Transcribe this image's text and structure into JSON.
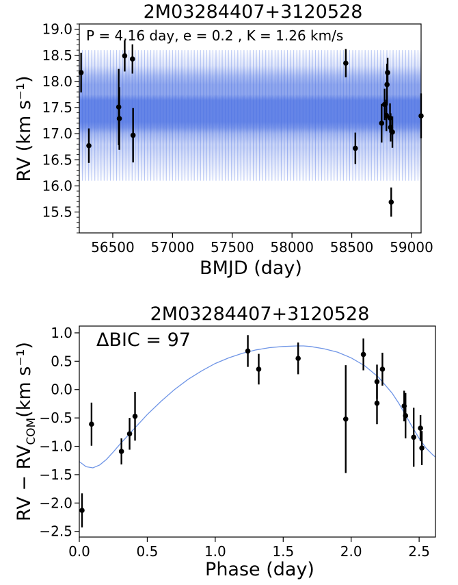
{
  "chart_data": [
    {
      "type": "scatter",
      "title": "2M03284407+3120528",
      "annotation": "P = 4.16 day, e = 0.2 , K = 1.26 km/s",
      "xlabel": "BMJD (day)",
      "ylabel": "RV (km s⁻¹)",
      "xlim": [
        56220,
        59080
      ],
      "ylim": [
        15.1,
        19.1
      ],
      "xticks": [
        56500,
        57000,
        57500,
        58000,
        58500,
        59000
      ],
      "yticks": [
        15.5,
        16.0,
        16.5,
        17.0,
        17.5,
        18.0,
        18.5,
        19.0
      ],
      "model_band": {
        "color": "#4169e1",
        "period_days": 4.16,
        "center": 17.5,
        "outer_range": [
          16.1,
          18.6
        ],
        "inner_range": [
          16.8,
          18.3
        ],
        "core_range": [
          17.0,
          17.75
        ]
      },
      "series": [
        {
          "points": [
            {
              "x": 56235,
              "y": 18.17,
              "err": 0.38
            },
            {
              "x": 56300,
              "y": 16.77,
              "err": 0.33
            },
            {
              "x": 56550,
              "y": 17.51,
              "err": 0.73
            },
            {
              "x": 56555,
              "y": 17.29,
              "err": 0.6
            },
            {
              "x": 56600,
              "y": 18.49,
              "err": 0.3
            },
            {
              "x": 56665,
              "y": 18.43,
              "err": 0.28
            },
            {
              "x": 56670,
              "y": 16.97,
              "err": 0.52
            },
            {
              "x": 58450,
              "y": 18.35,
              "err": 0.27
            },
            {
              "x": 58530,
              "y": 16.72,
              "err": 0.3
            },
            {
              "x": 58750,
              "y": 17.2,
              "err": 0.37
            },
            {
              "x": 58775,
              "y": 17.56,
              "err": 0.3
            },
            {
              "x": 58790,
              "y": 17.35,
              "err": 0.3
            },
            {
              "x": 58795,
              "y": 17.94,
              "err": 0.4
            },
            {
              "x": 58800,
              "y": 18.17,
              "err": 0.28
            },
            {
              "x": 58820,
              "y": 17.3,
              "err": 0.28
            },
            {
              "x": 58825,
              "y": 17.12,
              "err": 0.27
            },
            {
              "x": 58830,
              "y": 15.69,
              "err": 0.28
            },
            {
              "x": 58840,
              "y": 17.03,
              "err": 0.3
            },
            {
              "x": 59080,
              "y": 17.34,
              "err": 0.43
            }
          ]
        }
      ]
    },
    {
      "type": "scatter",
      "title": "2M03284407+3120528",
      "annotation": "ΔBIC = 97",
      "xlabel": "Phase (day)",
      "ylabel": "RV − RV",
      "ylabel_sub": "COM",
      "ylabel_tail": "(km s⁻¹)",
      "xlim": [
        0.0,
        2.62
      ],
      "ylim": [
        -2.6,
        1.12
      ],
      "xticks": [
        0.0,
        0.5,
        1.0,
        1.5,
        2.0,
        2.5
      ],
      "yticks": [
        -2.5,
        -2.0,
        -1.5,
        -1.0,
        -0.5,
        0.0,
        0.5,
        1.0
      ],
      "model_curve": {
        "color": "#6f95e6",
        "x": [
          0.0,
          0.05,
          0.1,
          0.15,
          0.2,
          0.25,
          0.3,
          0.4,
          0.5,
          0.6,
          0.7,
          0.8,
          0.9,
          1.0,
          1.1,
          1.2,
          1.3,
          1.4,
          1.5,
          1.6,
          1.65,
          1.7,
          1.8,
          1.9,
          2.0,
          2.1,
          2.2,
          2.3,
          2.35,
          2.4,
          2.45,
          2.5,
          2.55,
          2.6,
          2.62
        ],
        "y": [
          -1.27,
          -1.36,
          -1.38,
          -1.33,
          -1.23,
          -1.1,
          -0.96,
          -0.7,
          -0.44,
          -0.21,
          0.0,
          0.18,
          0.33,
          0.46,
          0.56,
          0.64,
          0.7,
          0.74,
          0.76,
          0.77,
          0.77,
          0.76,
          0.72,
          0.66,
          0.56,
          0.42,
          0.22,
          -0.06,
          -0.24,
          -0.45,
          -0.66,
          -0.86,
          -1.03,
          -1.15,
          -1.19
        ]
      },
      "series": [
        {
          "points": [
            {
              "x": 0.02,
              "y": -2.13,
              "err": 0.3
            },
            {
              "x": 0.09,
              "y": -0.61,
              "err": 0.38
            },
            {
              "x": 0.31,
              "y": -1.09,
              "err": 0.23
            },
            {
              "x": 0.37,
              "y": -0.78,
              "err": 0.28
            },
            {
              "x": 0.41,
              "y": -0.47,
              "err": 0.43
            },
            {
              "x": 1.24,
              "y": 0.68,
              "err": 0.28
            },
            {
              "x": 1.32,
              "y": 0.36,
              "err": 0.27
            },
            {
              "x": 1.61,
              "y": 0.55,
              "err": 0.28
            },
            {
              "x": 1.96,
              "y": -0.52,
              "err": 0.95
            },
            {
              "x": 2.09,
              "y": 0.62,
              "err": 0.28
            },
            {
              "x": 2.19,
              "y": 0.14,
              "err": 0.3
            },
            {
              "x": 2.19,
              "y": -0.24,
              "err": 0.37
            },
            {
              "x": 2.23,
              "y": 0.36,
              "err": 0.29
            },
            {
              "x": 2.39,
              "y": -0.29,
              "err": 0.27
            },
            {
              "x": 2.4,
              "y": -0.46,
              "err": 0.4
            },
            {
              "x": 2.46,
              "y": -0.84,
              "err": 0.52
            },
            {
              "x": 2.51,
              "y": -0.68,
              "err": 0.23
            },
            {
              "x": 2.52,
              "y": -1.03,
              "err": 0.3
            }
          ]
        }
      ]
    }
  ]
}
